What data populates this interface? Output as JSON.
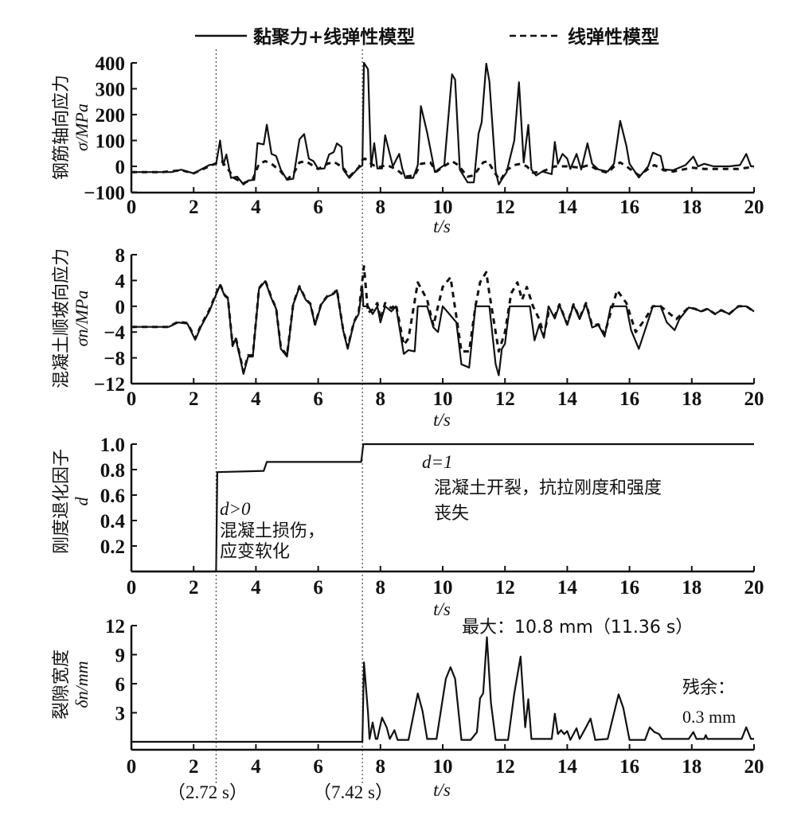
{
  "legend": {
    "solid_label": "黏聚力+线弹性模型",
    "dashed_label": "线弹性模型"
  },
  "markers": {
    "t1": 2.72,
    "t1_label": "（2.72 s）",
    "t2": 7.42,
    "t2_label": "（7.42 s）"
  },
  "chart_data": [
    {
      "type": "line",
      "ylabel_cn": "钢筋轴向应力",
      "ylabel_sym": "σ/MPa",
      "xlabel": "t/s",
      "xlim": [
        0,
        20
      ],
      "ylim": [
        -100,
        400
      ],
      "xticks": [
        "0",
        "2",
        "4",
        "6",
        "8",
        "10",
        "12",
        "14",
        "16",
        "18",
        "20"
      ],
      "yticks": [
        "400",
        "300",
        "200",
        "100",
        "0",
        "−100"
      ],
      "ytick_values": [
        400,
        300,
        200,
        100,
        0,
        -100
      ],
      "series": [
        {
          "name": "黏聚力+线弹性模型",
          "style": "solid",
          "x": [
            0,
            1.3,
            1.6,
            2.0,
            2.5,
            2.72,
            2.85,
            2.95,
            3.05,
            3.2,
            3.4,
            3.6,
            3.75,
            3.95,
            4.05,
            4.25,
            4.35,
            4.5,
            4.65,
            4.8,
            5.0,
            5.2,
            5.4,
            5.55,
            5.7,
            5.85,
            6.0,
            6.2,
            6.35,
            6.5,
            6.6,
            6.75,
            6.8,
            7.0,
            7.3,
            7.42,
            7.47,
            7.6,
            7.7,
            7.8,
            7.9,
            8.05,
            8.15,
            8.4,
            8.6,
            8.7,
            8.8,
            9.05,
            9.2,
            9.3,
            9.5,
            9.75,
            9.9,
            10.05,
            10.3,
            10.4,
            10.55,
            10.8,
            11.0,
            11.15,
            11.25,
            11.4,
            11.5,
            11.7,
            11.8,
            11.9,
            12.05,
            12.3,
            12.45,
            12.6,
            12.75,
            12.85,
            13.0,
            13.2,
            13.5,
            13.6,
            13.7,
            13.85,
            14.0,
            14.1,
            14.3,
            14.45,
            14.65,
            14.8,
            15.0,
            15.3,
            15.5,
            15.7,
            15.9,
            16.0,
            16.3,
            16.6,
            16.75,
            17.0,
            17.1,
            17.4,
            17.8,
            18.05,
            18.2,
            18.4,
            18.7,
            19.2,
            19.55,
            19.75,
            19.9,
            20
          ],
          "y": [
            -22,
            -22,
            -13,
            -27,
            5,
            9,
            100,
            5,
            46,
            -45,
            -40,
            -70,
            -55,
            -52,
            90,
            85,
            161,
            48,
            40,
            -13,
            -52,
            -48,
            104,
            125,
            30,
            20,
            -10,
            -8,
            46,
            55,
            89,
            75,
            -12,
            -45,
            -5,
            3,
            400,
            375,
            -2,
            90,
            -8,
            -8,
            120,
            0,
            48,
            -8,
            -45,
            -45,
            5,
            233,
            130,
            -22,
            -8,
            5,
            356,
            335,
            -13,
            -62,
            -62,
            126,
            170,
            397,
            330,
            -20,
            -70,
            -50,
            -23,
            100,
            325,
            15,
            160,
            -12,
            -35,
            -20,
            -30,
            94,
            10,
            48,
            30,
            -10,
            48,
            -12,
            89,
            10,
            -12,
            -20,
            10,
            176,
            79,
            10,
            -43,
            0,
            53,
            40,
            -12,
            -15,
            5,
            38,
            0,
            10,
            0,
            0,
            5,
            48,
            0,
            0
          ]
        },
        {
          "name": "线弹性模型",
          "style": "dashed",
          "x": [
            0,
            1,
            1.6,
            2.0,
            2.5,
            2.72,
            2.9,
            3.1,
            3.3,
            3.6,
            3.9,
            4.1,
            4.3,
            4.5,
            4.8,
            5.0,
            5.2,
            5.4,
            5.6,
            5.8,
            6.0,
            6.3,
            6.5,
            6.8,
            7.0,
            7.3,
            7.42,
            7.5,
            7.7,
            7.9,
            8.2,
            8.5,
            8.8,
            9.1,
            9.3,
            9.6,
            9.8,
            10.1,
            10.3,
            10.5,
            10.8,
            11.0,
            11.3,
            11.45,
            11.7,
            11.85,
            12.05,
            12.3,
            12.5,
            12.7,
            12.9,
            13.2,
            13.6,
            14.0,
            14.4,
            14.7,
            15.0,
            15.3,
            15.55,
            15.7,
            15.9,
            16.3,
            16.6,
            16.8,
            17.1,
            17.4,
            17.8,
            18.0,
            18.4,
            19.0,
            19.5,
            19.8,
            20
          ],
          "y": [
            -22,
            -22,
            -15,
            -27,
            0,
            12,
            20,
            -10,
            -45,
            -65,
            -50,
            10,
            20,
            10,
            -20,
            -50,
            -30,
            15,
            20,
            5,
            -10,
            10,
            18,
            -5,
            -40,
            -5,
            25,
            30,
            10,
            -5,
            5,
            -10,
            -40,
            -35,
            10,
            15,
            -20,
            5,
            20,
            5,
            -40,
            -35,
            15,
            20,
            -30,
            -55,
            -15,
            5,
            10,
            0,
            -25,
            -20,
            0,
            0,
            -5,
            5,
            -15,
            -25,
            5,
            15,
            0,
            -35,
            -10,
            5,
            -15,
            -20,
            -10,
            -5,
            -10,
            -10,
            -10,
            -5,
            -5
          ]
        }
      ]
    },
    {
      "type": "line",
      "ylabel_cn": "混凝土顺坡向应力",
      "ylabel_sym": "σn/MPa",
      "xlabel": "t/s",
      "xlim": [
        0,
        20
      ],
      "ylim": [
        -12,
        8
      ],
      "xticks": [
        "0",
        "2",
        "4",
        "6",
        "8",
        "10",
        "12",
        "14",
        "16",
        "18",
        "20"
      ],
      "yticks": [
        "8",
        "4",
        "0",
        "−4",
        "−8",
        "−12"
      ],
      "ytick_values": [
        8,
        4,
        0,
        -4,
        -8,
        -12
      ],
      "series": [
        {
          "name": "黏聚力+线弹性模型",
          "style": "solid",
          "x": [
            0,
            1.2,
            1.5,
            1.8,
            2.05,
            2.25,
            2.5,
            2.72,
            2.85,
            3.0,
            3.1,
            3.25,
            3.35,
            3.5,
            3.6,
            3.75,
            3.9,
            4.1,
            4.3,
            4.5,
            4.65,
            4.8,
            5.0,
            5.2,
            5.4,
            5.6,
            5.75,
            5.9,
            6.1,
            6.3,
            6.5,
            6.6,
            6.8,
            6.95,
            7.15,
            7.3,
            7.42,
            7.45,
            7.6,
            7.75,
            7.9,
            8.0,
            8.15,
            8.35,
            8.5,
            8.75,
            8.9,
            9.1,
            9.2,
            9.5,
            9.7,
            9.85,
            10.0,
            10.44,
            10.6,
            10.85,
            11.05,
            11.5,
            11.7,
            11.8,
            11.9,
            12.0,
            12.15,
            12.8,
            12.95,
            13.1,
            13.25,
            13.4,
            13.6,
            13.75,
            14.0,
            14.2,
            14.4,
            14.6,
            14.8,
            15.0,
            15.2,
            15.4,
            15.9,
            16.05,
            16.3,
            16.5,
            16.75,
            17.0,
            17.2,
            17.45,
            17.6,
            17.9,
            18.1,
            18.3,
            18.5,
            18.75,
            18.95,
            19.2,
            19.5,
            19.75,
            20
          ],
          "y": [
            -3.2,
            -3.2,
            -2.5,
            -2.7,
            -5.2,
            -3,
            -0.8,
            1.8,
            3.3,
            1.6,
            1.2,
            -6.2,
            -5,
            -8.2,
            -10.5,
            -7.8,
            -7.8,
            2.7,
            3.9,
            1.2,
            -0.4,
            -6.6,
            -7.8,
            0.3,
            3,
            1,
            0.3,
            -2.9,
            0.3,
            1.5,
            1.9,
            2.5,
            -3.7,
            -6.6,
            -2.5,
            -1.2,
            3,
            0,
            0,
            -1.2,
            0,
            -2.5,
            0,
            -0.8,
            0,
            -7.4,
            -6.8,
            -7,
            0,
            0,
            -3.3,
            -4,
            0,
            -2.5,
            -9,
            -9.5,
            0,
            0,
            -9,
            -10.7,
            -6.6,
            -5.8,
            0,
            0,
            -5.3,
            -2.9,
            -4.9,
            0,
            -1.9,
            0.2,
            -2.9,
            0.2,
            -2,
            0.4,
            -3.3,
            -2.9,
            -4.7,
            0,
            0,
            -3.7,
            -6.6,
            -3.7,
            0,
            0,
            -2.5,
            -3.7,
            -2,
            -0.2,
            -0.4,
            -0.8,
            -0.4,
            -1.2,
            -0.6,
            -1.2,
            0,
            0,
            -0.8
          ]
        },
        {
          "name": "线弹性模型",
          "style": "dashed",
          "x": [
            0,
            1.2,
            1.5,
            1.8,
            2.05,
            2.25,
            2.5,
            2.72,
            2.85,
            3.0,
            3.1,
            3.25,
            3.35,
            3.5,
            3.6,
            3.75,
            3.9,
            4.1,
            4.3,
            4.5,
            4.65,
            4.8,
            5.0,
            5.2,
            5.4,
            5.6,
            5.75,
            5.9,
            6.1,
            6.3,
            6.5,
            6.6,
            6.8,
            6.95,
            7.15,
            7.3,
            7.47,
            7.6,
            7.75,
            7.9,
            8.0,
            8.15,
            8.35,
            8.5,
            8.75,
            8.9,
            9.2,
            9.5,
            9.7,
            10.0,
            10.25,
            10.45,
            10.6,
            10.85,
            11.05,
            11.2,
            11.4,
            11.5,
            11.8,
            12.0,
            12.2,
            12.4,
            12.55,
            12.7,
            12.9,
            13.1,
            13.25,
            13.4,
            13.6,
            13.75,
            14.0,
            14.2,
            14.4,
            14.6,
            14.8,
            15.0,
            15.2,
            15.6,
            15.9,
            16.2,
            16.5,
            16.75,
            17.0,
            17.5,
            17.9,
            18.1,
            18.3,
            18.5,
            18.75,
            18.95,
            19.2,
            19.5,
            19.75,
            20
          ],
          "y": [
            -3.2,
            -3.2,
            -2.4,
            -2.6,
            -5,
            -2.8,
            -0.6,
            2,
            3.4,
            1.7,
            1.3,
            -6,
            -4.8,
            -8,
            -10.2,
            -7.6,
            -7.6,
            2.8,
            4,
            1.3,
            -0.3,
            -6.4,
            -7.6,
            0.4,
            3.1,
            1.1,
            0.4,
            -2.8,
            0.4,
            1.6,
            2,
            2.6,
            -3.6,
            -6.4,
            -2.4,
            -1,
            6.2,
            -1,
            -0.5,
            0.5,
            -2,
            0.5,
            -0.3,
            0.3,
            -6,
            -5,
            3.7,
            1,
            -3,
            3,
            4.5,
            -2,
            -7,
            -7,
            0,
            3.7,
            5.3,
            2,
            -7,
            -4,
            2,
            3.7,
            1,
            3,
            0,
            -2,
            -4.5,
            -1,
            -1.5,
            0.3,
            -2.8,
            0.3,
            -1.8,
            0.5,
            -3,
            -2.8,
            -4.3,
            2.5,
            0.5,
            -4,
            -2,
            0,
            0,
            -2,
            -0.2,
            -0.4,
            -0.8,
            -0.4,
            -1.2,
            -0.6,
            -1.2,
            0,
            0,
            -0.8
          ]
        }
      ]
    },
    {
      "type": "line",
      "ylabel_cn": "刚度退化因子",
      "ylabel_sym": "d",
      "xlabel": "t/s",
      "xlim": [
        0,
        20
      ],
      "ylim": [
        0,
        1
      ],
      "xticks": [
        "0",
        "2",
        "4",
        "6",
        "8",
        "10",
        "12",
        "14",
        "16",
        "18",
        "20"
      ],
      "yticks": [
        "1.0",
        "0.8",
        "0.6",
        "0.4",
        "0.2"
      ],
      "ytick_values": [
        1.0,
        0.8,
        0.6,
        0.4,
        0.2
      ],
      "series": [
        {
          "name": "黏聚力+线弹性模型",
          "style": "solid",
          "x": [
            0,
            2.72,
            2.76,
            4.25,
            4.35,
            7.38,
            7.45,
            20
          ],
          "y": [
            0,
            0,
            0.78,
            0.79,
            0.86,
            0.86,
            1.0,
            1.0
          ]
        }
      ],
      "annotations": {
        "damage_symbol": "d>0",
        "damage_line1": "混凝土损伤，",
        "damage_line2": "应变软化",
        "crack_symbol": "d=1",
        "crack_line1": "混凝土开裂，抗拉刚度和强度",
        "crack_line2": "丧失"
      }
    },
    {
      "type": "line",
      "ylabel_cn": "裂隙宽度",
      "ylabel_sym": "δn/mm",
      "xlabel": "t/s",
      "xlim": [
        0,
        20
      ],
      "ylim": [
        0,
        12
      ],
      "xticks": [
        "0",
        "2",
        "4",
        "6",
        "8",
        "10",
        "12",
        "14",
        "16",
        "18",
        "20"
      ],
      "yticks": [
        "12",
        "9",
        "6",
        "3"
      ],
      "ytick_values": [
        12,
        9,
        6,
        3
      ],
      "series": [
        {
          "name": "黏聚力+线弹性模型",
          "style": "solid",
          "x": [
            0,
            7.42,
            7.47,
            7.6,
            7.65,
            7.75,
            7.85,
            7.9,
            8.05,
            8.2,
            8.3,
            8.45,
            8.55,
            8.9,
            9.2,
            9.35,
            9.5,
            9.8,
            10.1,
            10.25,
            10.4,
            10.6,
            10.9,
            11.1,
            11.2,
            11.3,
            11.42,
            11.55,
            11.7,
            12.1,
            12.3,
            12.5,
            12.65,
            12.75,
            12.85,
            13.3,
            13.5,
            13.6,
            13.7,
            13.8,
            13.9,
            14.0,
            14.1,
            14.3,
            14.4,
            14.6,
            14.75,
            14.9,
            15.3,
            15.65,
            15.8,
            16.0,
            16.5,
            16.65,
            16.8,
            16.95,
            17.05,
            17.9,
            18.05,
            18.15,
            18.4,
            18.45,
            18.5,
            19.6,
            19.75,
            19.9,
            20
          ],
          "y": [
            0,
            0,
            8.2,
            3,
            0.3,
            2,
            0.3,
            0.3,
            2.5,
            1.5,
            0.3,
            1.2,
            0.2,
            0.2,
            5,
            3.2,
            0.3,
            0.3,
            6.5,
            7.7,
            6.5,
            0.2,
            0.2,
            1,
            4.5,
            5,
            10.8,
            4,
            0.2,
            0.2,
            5,
            8.8,
            1.5,
            4.4,
            0.3,
            0.3,
            0.3,
            2.9,
            0.8,
            1.2,
            0.8,
            1.1,
            0.2,
            1.4,
            0.3,
            1.5,
            2.4,
            0.2,
            0.3,
            4.9,
            3.5,
            0.2,
            0.2,
            1.5,
            1.0,
            0.8,
            0.3,
            0.3,
            1,
            0.3,
            0.3,
            0.7,
            0.3,
            0.3,
            1.5,
            0.3,
            0.3
          ]
        }
      ],
      "annotations": {
        "max_label": "最大：10.8 mm（11.36 s）",
        "residual_label": "残余：",
        "residual_value": "0.3 mm"
      }
    }
  ]
}
